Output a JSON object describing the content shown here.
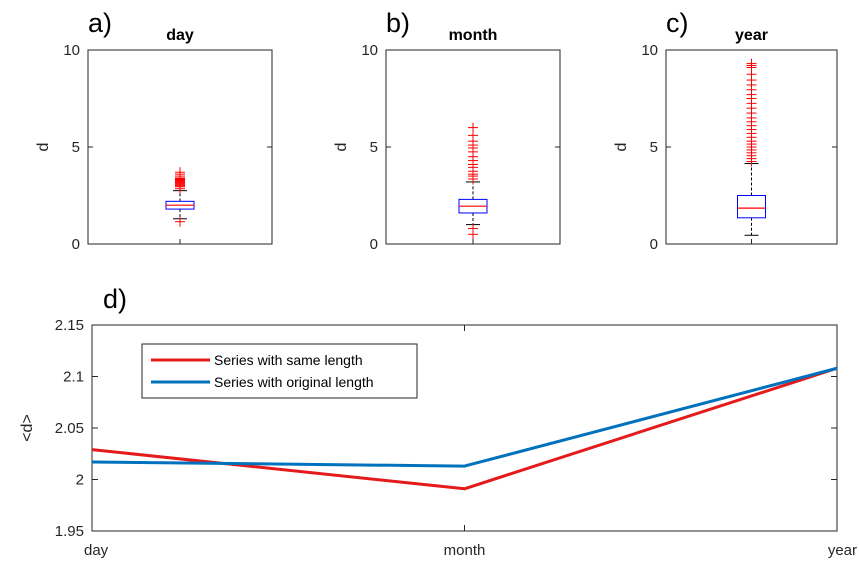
{
  "colors": {
    "series_red": "#e41a1c",
    "series_blue": "#0072bd",
    "box_blue": "#0000ff",
    "median_red": "#ff0000",
    "outlier_red": "#ff0000",
    "whisker": "#000000",
    "axis": "#262626"
  },
  "chart_data": [
    {
      "type": "box",
      "panel_label": "a)",
      "title": "day",
      "ylabel": "d",
      "ylim": [
        0,
        10
      ],
      "yticks": [
        0,
        5,
        10
      ],
      "box": {
        "whisker_low": 1.3,
        "q1": 1.8,
        "median": 2.0,
        "q3": 2.2,
        "whisker_high": 2.75
      },
      "outliers": [
        1.15,
        2.85,
        2.95,
        3.0,
        3.05,
        3.1,
        3.15,
        3.2,
        3.25,
        3.3,
        3.35,
        3.4,
        3.5,
        3.6,
        3.7
      ]
    },
    {
      "type": "box",
      "panel_label": "b)",
      "title": "month",
      "ylabel": "d",
      "ylim": [
        0,
        10
      ],
      "yticks": [
        0,
        5,
        10
      ],
      "box": {
        "whisker_low": 1.0,
        "q1": 1.6,
        "median": 1.95,
        "q3": 2.3,
        "whisker_high": 3.2
      },
      "outliers": [
        0.5,
        0.8,
        3.35,
        3.5,
        3.6,
        3.75,
        3.95,
        4.1,
        4.3,
        4.5,
        4.75,
        4.95,
        5.1,
        5.3,
        5.6,
        6.0
      ]
    },
    {
      "type": "box",
      "panel_label": "c)",
      "title": "year",
      "ylabel": "d",
      "ylim": [
        0,
        10
      ],
      "yticks": [
        0,
        5,
        10
      ],
      "box": {
        "whisker_low": 0.45,
        "q1": 1.35,
        "median": 1.85,
        "q3": 2.5,
        "whisker_high": 4.15
      },
      "outliers": [
        4.25,
        4.4,
        4.55,
        4.7,
        4.85,
        5.0,
        5.15,
        5.3,
        5.5,
        5.7,
        5.9,
        6.1,
        6.3,
        6.5,
        6.75,
        7.0,
        7.25,
        7.5,
        7.7,
        7.95,
        8.2,
        8.45,
        8.75,
        9.1,
        9.2,
        9.3
      ]
    },
    {
      "type": "line",
      "panel_label": "d)",
      "title": "",
      "ylabel": "<d>",
      "categories": [
        "day",
        "month",
        "year"
      ],
      "ylim": [
        1.95,
        2.15
      ],
      "yticks": [
        "1.95",
        "2",
        "2.05",
        "2.1",
        "2.15"
      ],
      "legend_position": "top-left",
      "series": [
        {
          "name": "Series with same length",
          "values": [
            2.029,
            1.991,
            2.108
          ]
        },
        {
          "name": "Series with original length",
          "values": [
            2.017,
            2.013,
            2.108
          ]
        }
      ]
    }
  ]
}
